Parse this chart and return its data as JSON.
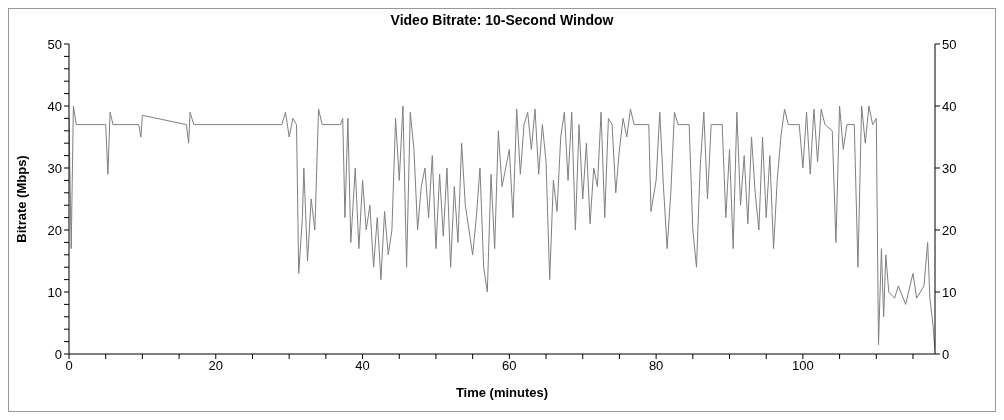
{
  "chart_data": {
    "type": "line",
    "title": "Video Bitrate: 10-Second Window",
    "xlabel": "Time (minutes)",
    "ylabel": "Bitrate (Mbps)",
    "xlim": [
      0,
      118
    ],
    "xticks": [
      0,
      {
        "value": 5,
        "label": null
      },
      {
        "value": 10,
        "label": null
      },
      {
        "value": 15,
        "label": null
      },
      20,
      {
        "value": 25,
        "label": null
      },
      {
        "value": 30,
        "label": null
      },
      {
        "value": 35,
        "label": null
      },
      40,
      {
        "value": 45,
        "label": null
      },
      {
        "value": 50,
        "label": null
      },
      {
        "value": 55,
        "label": null
      },
      60,
      {
        "value": 65,
        "label": null
      },
      {
        "value": 70,
        "label": null
      },
      {
        "value": 75,
        "label": null
      },
      80,
      {
        "value": 85,
        "label": null
      },
      {
        "value": 90,
        "label": null
      },
      {
        "value": 95,
        "label": null
      },
      100,
      {
        "value": 105,
        "label": null
      },
      {
        "value": 110,
        "label": null
      },
      {
        "value": 115,
        "label": null
      }
    ],
    "ylim": [
      0,
      50
    ],
    "yticks": [
      0,
      {
        "value": 2,
        "label": null
      },
      {
        "value": 4,
        "label": null
      },
      {
        "value": 6,
        "label": null
      },
      {
        "value": 8,
        "label": null
      },
      10,
      {
        "value": 12,
        "label": null
      },
      {
        "value": 14,
        "label": null
      },
      {
        "value": 16,
        "label": null
      },
      {
        "value": 18,
        "label": null
      },
      20,
      {
        "value": 22,
        "label": null
      },
      {
        "value": 24,
        "label": null
      },
      {
        "value": 26,
        "label": null
      },
      {
        "value": 28,
        "label": null
      },
      30,
      {
        "value": 32,
        "label": null
      },
      {
        "value": 34,
        "label": null
      },
      {
        "value": 36,
        "label": null
      },
      {
        "value": 38,
        "label": null
      },
      40,
      {
        "value": 42,
        "label": null
      },
      {
        "value": 44,
        "label": null
      },
      {
        "value": 46,
        "label": null
      },
      {
        "value": 48,
        "label": null
      },
      50
    ],
    "y2lim": [
      0,
      50
    ],
    "y2ticks": [
      0,
      10,
      20,
      30,
      40,
      50
    ],
    "marker": "none",
    "line_style": "solid",
    "series": [
      {
        "color": "#808080",
        "x": [
          0,
          0.3,
          0.6,
          1,
          5,
          5.3,
          5.6,
          6,
          9.5,
          9.8,
          10,
          16,
          16.3,
          16.5,
          17,
          29,
          29.5,
          30,
          30.5,
          31,
          31.3,
          31.8,
          32,
          32.5,
          33,
          33.5,
          34,
          34.5,
          37,
          37.3,
          37.6,
          38,
          38.4,
          39,
          39.5,
          40,
          40.5,
          41,
          41.5,
          42,
          42.5,
          43,
          43.5,
          44,
          44.5,
          45,
          45.5,
          46,
          46.5,
          47,
          47.5,
          48,
          48.5,
          49,
          49.5,
          50,
          50.5,
          51,
          51.5,
          52,
          52.5,
          53,
          53.5,
          54,
          55,
          55.5,
          56,
          56.5,
          57,
          57.5,
          58,
          58.5,
          59,
          60,
          60.5,
          61,
          61.5,
          62,
          62.5,
          63,
          63.5,
          64,
          64.5,
          65,
          65.5,
          66,
          66.5,
          67,
          67.5,
          68,
          68.5,
          69,
          69.5,
          70,
          70.5,
          71,
          71.5,
          72,
          72.5,
          73,
          73.5,
          74,
          74.5,
          75,
          75.5,
          76,
          76.5,
          77,
          79,
          79.3,
          80,
          80.5,
          81,
          81.5,
          82,
          82.5,
          83,
          84.5,
          85,
          85.5,
          86,
          86.5,
          87,
          87.5,
          89,
          89.5,
          90,
          90.5,
          91,
          91.5,
          92,
          92.5,
          93,
          93.5,
          94,
          94.5,
          95,
          95.5,
          96,
          96.5,
          97,
          97.5,
          98,
          99.5,
          100,
          100.5,
          101,
          101.5,
          102,
          102.5,
          103,
          104,
          104.5,
          105,
          105.5,
          106,
          107,
          107.5,
          108,
          108.5,
          109,
          109.5,
          110,
          110.3,
          110.7,
          111,
          111.3,
          111.7,
          112.5,
          113,
          114,
          115,
          115.5,
          116,
          116.5,
          117,
          117.3,
          117.7,
          118
        ],
        "values": [
          38,
          17,
          40,
          37,
          37,
          29,
          39,
          37,
          37,
          35,
          38.5,
          37,
          34,
          39,
          37,
          37,
          39,
          35,
          38,
          37,
          13,
          22,
          30,
          15,
          25,
          20,
          39.5,
          37,
          37,
          38,
          22,
          38,
          18,
          30,
          17,
          28,
          20,
          24,
          14,
          22,
          12,
          23,
          16,
          20,
          38,
          28,
          40,
          14,
          39,
          33,
          20,
          27,
          30,
          22,
          32,
          17,
          29,
          19,
          30,
          14,
          27,
          18,
          34,
          24,
          16,
          22,
          30,
          14,
          10,
          29,
          17,
          36,
          27,
          33,
          22,
          39.5,
          29,
          37,
          39,
          33,
          39.5,
          29,
          37,
          31,
          12,
          28,
          23,
          35,
          39,
          28,
          39,
          20,
          37,
          25,
          34,
          21,
          30,
          27,
          39,
          22,
          38,
          37,
          26,
          33,
          38,
          35,
          39.5,
          37,
          37,
          23,
          28,
          39,
          27,
          17,
          26,
          39,
          37,
          37,
          20,
          14,
          30,
          39,
          25,
          37,
          37,
          22,
          33,
          17,
          39,
          24,
          32,
          21,
          35,
          26,
          20,
          35,
          22,
          32,
          17,
          28,
          35,
          39.5,
          37,
          37,
          30,
          39,
          29,
          39.5,
          31,
          39.5,
          37,
          36,
          18,
          40,
          33,
          37,
          37,
          14,
          40,
          34,
          40,
          37,
          38,
          1.5,
          17,
          6,
          16,
          10,
          9,
          11,
          8,
          13,
          9,
          10,
          11,
          18,
          9,
          5,
          0.5
        ]
      }
    ]
  }
}
